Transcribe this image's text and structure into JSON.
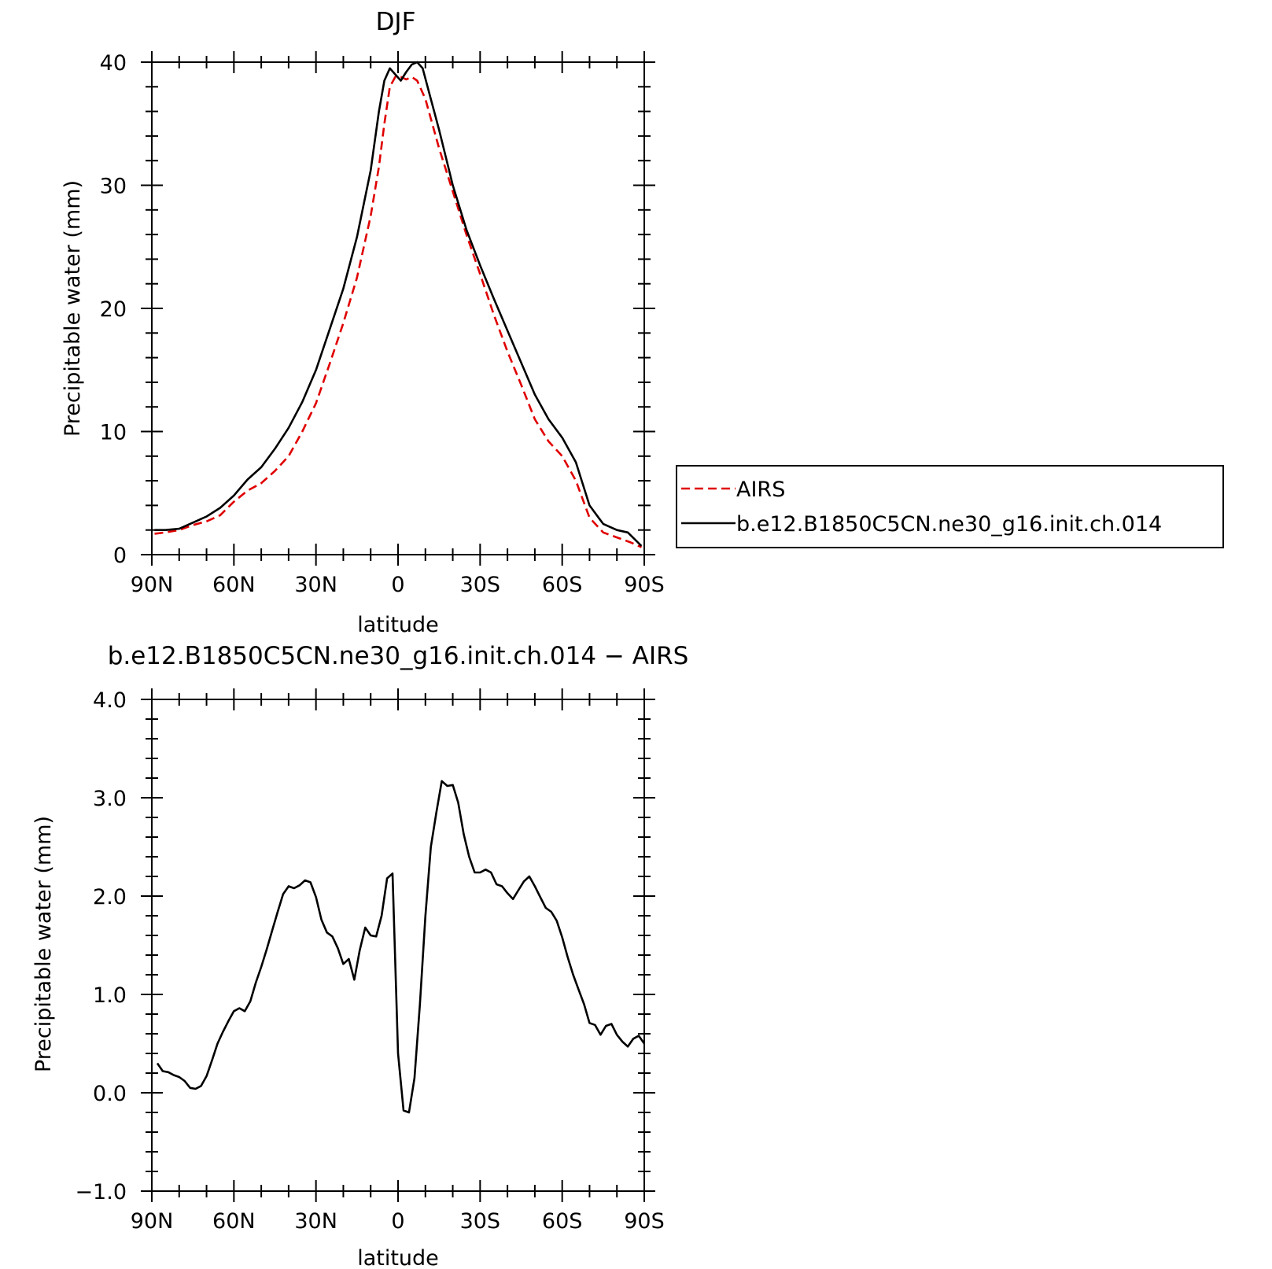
{
  "chart_data": [
    {
      "type": "line",
      "title": "DJF",
      "xlabel": "latitude",
      "ylabel": "Precipitable water (mm)",
      "xlim": [
        90,
        -90
      ],
      "ylim": [
        0,
        40
      ],
      "x_ticks": [
        {
          "value": 90,
          "label": "90N"
        },
        {
          "value": 60,
          "label": "60N"
        },
        {
          "value": 30,
          "label": "30N"
        },
        {
          "value": 0,
          "label": "0"
        },
        {
          "value": -30,
          "label": "30S"
        },
        {
          "value": -60,
          "label": "60S"
        },
        {
          "value": -90,
          "label": "90S"
        }
      ],
      "y_ticks": [
        {
          "value": 0,
          "label": "0"
        },
        {
          "value": 10,
          "label": "10"
        },
        {
          "value": 20,
          "label": "20"
        },
        {
          "value": 30,
          "label": "30"
        },
        {
          "value": 40,
          "label": "40"
        }
      ],
      "legend": {
        "placement": "outside-right"
      },
      "series": [
        {
          "name": "AIRS",
          "color": "#e00000",
          "dash": "dashed",
          "points": [
            [
              89,
              1.7
            ],
            [
              85,
              1.8
            ],
            [
              80,
              2.0
            ],
            [
              75,
              2.4
            ],
            [
              70,
              2.7
            ],
            [
              65,
              3.2
            ],
            [
              60,
              4.3
            ],
            [
              55,
              5.2
            ],
            [
              50,
              5.8
            ],
            [
              45,
              6.8
            ],
            [
              40,
              8.0
            ],
            [
              35,
              10.0
            ],
            [
              30,
              12.3
            ],
            [
              25,
              15.5
            ],
            [
              20,
              18.8
            ],
            [
              15,
              22.5
            ],
            [
              10,
              27.5
            ],
            [
              7,
              31.5
            ],
            [
              5,
              35.0
            ],
            [
              3,
              38.0
            ],
            [
              1,
              38.8
            ],
            [
              -1,
              38.8
            ],
            [
              -3,
              38.6
            ],
            [
              -5,
              38.8
            ],
            [
              -7,
              38.5
            ],
            [
              -10,
              37.0
            ],
            [
              -15,
              33.0
            ],
            [
              -20,
              29.5
            ],
            [
              -25,
              26.0
            ],
            [
              -30,
              22.8
            ],
            [
              -35,
              19.5
            ],
            [
              -40,
              16.5
            ],
            [
              -45,
              13.8
            ],
            [
              -50,
              11.0
            ],
            [
              -55,
              9.2
            ],
            [
              -60,
              8.0
            ],
            [
              -65,
              6.0
            ],
            [
              -70,
              3.0
            ],
            [
              -75,
              1.8
            ],
            [
              -80,
              1.4
            ],
            [
              -85,
              1.0
            ],
            [
              -89,
              0.6
            ]
          ]
        },
        {
          "name": "b.e12.B1850C5CN.ne30_g16.init.ch.014",
          "color": "#000000",
          "dash": "solid",
          "points": [
            [
              89,
              2.0
            ],
            [
              85,
              2.0
            ],
            [
              80,
              2.1
            ],
            [
              75,
              2.6
            ],
            [
              70,
              3.1
            ],
            [
              65,
              3.8
            ],
            [
              60,
              4.8
            ],
            [
              55,
              6.1
            ],
            [
              50,
              7.1
            ],
            [
              45,
              8.6
            ],
            [
              40,
              10.3
            ],
            [
              35,
              12.4
            ],
            [
              30,
              15.0
            ],
            [
              25,
              18.3
            ],
            [
              20,
              21.6
            ],
            [
              15,
              25.8
            ],
            [
              10,
              31.2
            ],
            [
              7,
              36.0
            ],
            [
              5,
              38.5
            ],
            [
              3,
              39.5
            ],
            [
              1,
              39.0
            ],
            [
              -1,
              38.5
            ],
            [
              -3,
              39.2
            ],
            [
              -5,
              39.8
            ],
            [
              -7,
              40.0
            ],
            [
              -9,
              39.5
            ],
            [
              -12,
              37.0
            ],
            [
              -15,
              34.5
            ],
            [
              -20,
              30.0
            ],
            [
              -25,
              26.4
            ],
            [
              -30,
              23.5
            ],
            [
              -35,
              20.8
            ],
            [
              -40,
              18.2
            ],
            [
              -45,
              15.6
            ],
            [
              -50,
              13.0
            ],
            [
              -55,
              11.0
            ],
            [
              -60,
              9.5
            ],
            [
              -65,
              7.5
            ],
            [
              -70,
              4.0
            ],
            [
              -75,
              2.5
            ],
            [
              -80,
              2.0
            ],
            [
              -84,
              1.8
            ],
            [
              -89,
              0.7
            ]
          ]
        }
      ]
    },
    {
      "type": "line",
      "title": "b.e12.B1850C5CN.ne30_g16.init.ch.014 − AIRS",
      "xlabel": "latitude",
      "ylabel": "Precipitable water (mm)",
      "xlim": [
        90,
        -90
      ],
      "ylim": [
        -1.0,
        4.0
      ],
      "x_ticks": [
        {
          "value": 90,
          "label": "90N"
        },
        {
          "value": 60,
          "label": "60N"
        },
        {
          "value": 30,
          "label": "30N"
        },
        {
          "value": 0,
          "label": "0"
        },
        {
          "value": -30,
          "label": "30S"
        },
        {
          "value": -60,
          "label": "60S"
        },
        {
          "value": -90,
          "label": "90S"
        }
      ],
      "y_ticks": [
        {
          "value": -1.0,
          "label": "−1.0"
        },
        {
          "value": 0.0,
          "label": "0.0"
        },
        {
          "value": 1.0,
          "label": "1.0"
        },
        {
          "value": 2.0,
          "label": "2.0"
        },
        {
          "value": 3.0,
          "label": "3.0"
        },
        {
          "value": 4.0,
          "label": "4.0"
        }
      ],
      "series": [
        {
          "color": "#000000",
          "dash": "solid",
          "points": [
            [
              88,
              0.3
            ],
            [
              86,
              0.22
            ],
            [
              84,
              0.21
            ],
            [
              82,
              0.18
            ],
            [
              80,
              0.16
            ],
            [
              78,
              0.12
            ],
            [
              76,
              0.05
            ],
            [
              74,
              0.04
            ],
            [
              72,
              0.07
            ],
            [
              70,
              0.17
            ],
            [
              68,
              0.33
            ],
            [
              66,
              0.5
            ],
            [
              64,
              0.62
            ],
            [
              62,
              0.73
            ],
            [
              60,
              0.83
            ],
            [
              58,
              0.86
            ],
            [
              56,
              0.83
            ],
            [
              54,
              0.93
            ],
            [
              52,
              1.12
            ],
            [
              50,
              1.28
            ],
            [
              48,
              1.46
            ],
            [
              46,
              1.65
            ],
            [
              44,
              1.84
            ],
            [
              42,
              2.02
            ],
            [
              40,
              2.1
            ],
            [
              38,
              2.08
            ],
            [
              36,
              2.11
            ],
            [
              34,
              2.16
            ],
            [
              32,
              2.14
            ],
            [
              30,
              1.99
            ],
            [
              28,
              1.76
            ],
            [
              26,
              1.63
            ],
            [
              24,
              1.59
            ],
            [
              22,
              1.47
            ],
            [
              20,
              1.31
            ],
            [
              18,
              1.36
            ],
            [
              16,
              1.15
            ],
            [
              14,
              1.45
            ],
            [
              12,
              1.68
            ],
            [
              10,
              1.6
            ],
            [
              8,
              1.59
            ],
            [
              6,
              1.8
            ],
            [
              4,
              2.18
            ],
            [
              2,
              2.23
            ],
            [
              0,
              0.4
            ],
            [
              -2,
              -0.18
            ],
            [
              -4,
              -0.2
            ],
            [
              -6,
              0.15
            ],
            [
              -8,
              0.9
            ],
            [
              -10,
              1.8
            ],
            [
              -12,
              2.5
            ],
            [
              -14,
              2.85
            ],
            [
              -16,
              3.17
            ],
            [
              -18,
              3.12
            ],
            [
              -20,
              3.13
            ],
            [
              -22,
              2.95
            ],
            [
              -24,
              2.63
            ],
            [
              -26,
              2.4
            ],
            [
              -28,
              2.24
            ],
            [
              -30,
              2.24
            ],
            [
              -32,
              2.27
            ],
            [
              -34,
              2.24
            ],
            [
              -36,
              2.12
            ],
            [
              -38,
              2.1
            ],
            [
              -40,
              2.03
            ],
            [
              -42,
              1.97
            ],
            [
              -44,
              2.06
            ],
            [
              -46,
              2.15
            ],
            [
              -48,
              2.2
            ],
            [
              -50,
              2.1
            ],
            [
              -52,
              1.99
            ],
            [
              -54,
              1.88
            ],
            [
              -56,
              1.84
            ],
            [
              -58,
              1.75
            ],
            [
              -60,
              1.58
            ],
            [
              -62,
              1.38
            ],
            [
              -64,
              1.2
            ],
            [
              -66,
              1.05
            ],
            [
              -68,
              0.9
            ],
            [
              -70,
              0.71
            ],
            [
              -72,
              0.69
            ],
            [
              -74,
              0.59
            ],
            [
              -76,
              0.68
            ],
            [
              -78,
              0.7
            ],
            [
              -80,
              0.59
            ],
            [
              -82,
              0.52
            ],
            [
              -84,
              0.47
            ],
            [
              -86,
              0.55
            ],
            [
              -88,
              0.58
            ],
            [
              -90,
              0.5
            ]
          ]
        }
      ]
    }
  ]
}
